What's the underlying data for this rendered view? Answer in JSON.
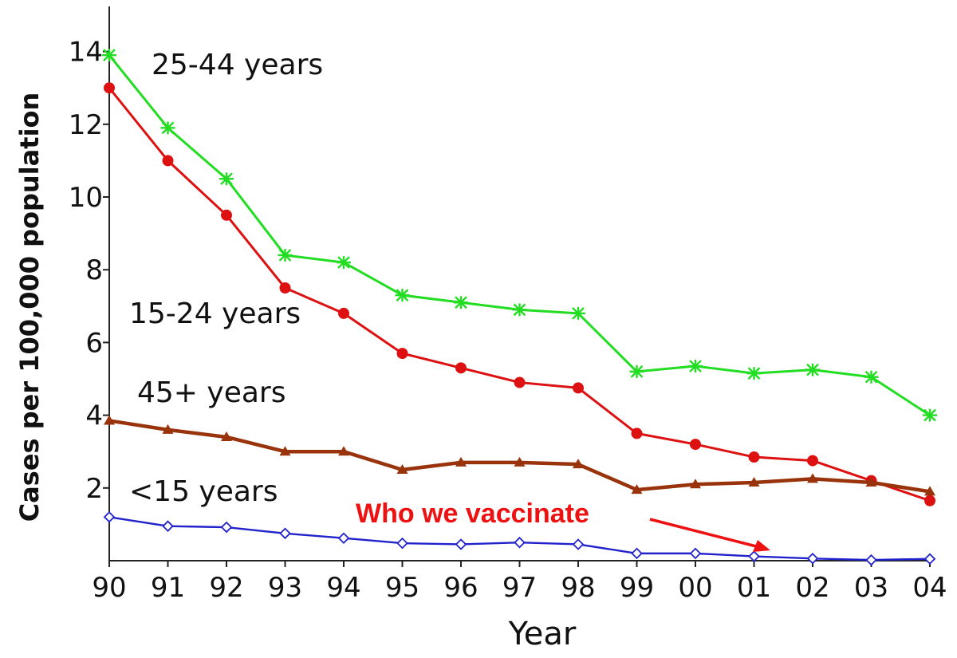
{
  "chart_data": {
    "type": "line",
    "title": "",
    "xlabel": "Year",
    "ylabel": "Cases per 100,000 population",
    "x": [
      "90",
      "91",
      "92",
      "93",
      "94",
      "95",
      "96",
      "97",
      "98",
      "99",
      "00",
      "01",
      "02",
      "03",
      "04"
    ],
    "ylim": [
      0,
      15
    ],
    "yticks": [
      2,
      4,
      6,
      8,
      10,
      12,
      14
    ],
    "ytick_labels": [
      "2",
      "4",
      "6",
      "8",
      "10",
      "12",
      "14"
    ],
    "grid": false,
    "legend": "none (series labeled inline)",
    "series": [
      {
        "name": "25-44 years",
        "color": "#22dd22",
        "marker": "asterisk",
        "values": [
          13.9,
          11.9,
          10.5,
          8.4,
          8.2,
          7.3,
          7.1,
          6.9,
          6.8,
          5.2,
          5.35,
          5.15,
          5.25,
          5.05,
          4.0
        ]
      },
      {
        "name": "15-24 years",
        "color": "#dd1111",
        "marker": "circle",
        "values": [
          13.0,
          11.0,
          9.5,
          7.5,
          6.8,
          5.7,
          5.3,
          4.9,
          4.75,
          3.5,
          3.2,
          2.85,
          2.75,
          2.2,
          1.65
        ]
      },
      {
        "name": "45+ years",
        "color": "#99330c",
        "marker": "triangle",
        "values": [
          3.85,
          3.6,
          3.4,
          3.0,
          3.0,
          2.5,
          2.7,
          2.7,
          2.65,
          1.95,
          2.1,
          2.15,
          2.25,
          2.15,
          1.9
        ]
      },
      {
        "name": "<15 years",
        "color": "#2222cc",
        "marker": "diamond",
        "values": [
          1.2,
          0.95,
          0.92,
          0.75,
          0.62,
          0.48,
          0.45,
          0.5,
          0.45,
          0.2,
          0.2,
          0.12,
          0.06,
          0.02,
          0.05
        ]
      }
    ],
    "annotation": {
      "text": "Who we vaccinate",
      "color": "#ee1111",
      "points_to_year": "01",
      "points_to_series": "<15 years"
    }
  }
}
